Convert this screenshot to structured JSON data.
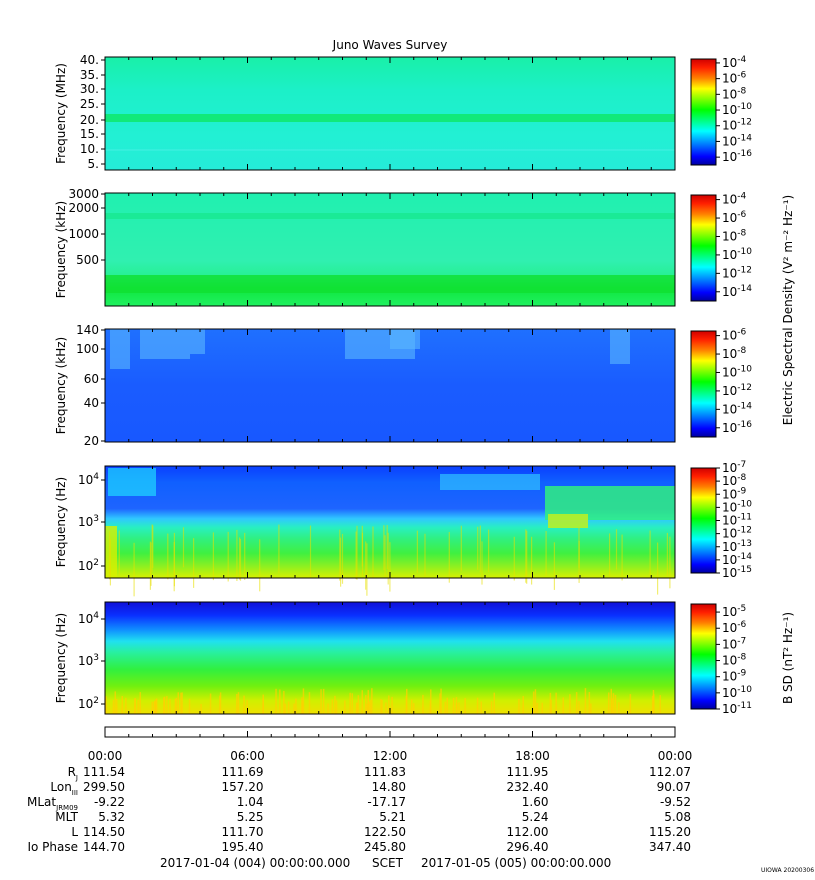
{
  "chart_data": [
    {
      "type": "heatmap",
      "title": "Juno Waves Survey",
      "ylabel": "Frequency (MHz)",
      "yticks": [
        "40.",
        "35.",
        "30.",
        "25.",
        "20.",
        "15.",
        "10.",
        "5."
      ],
      "colorbar_ticks": [
        "-4",
        "-6",
        "-8",
        "-10",
        "-12",
        "-14",
        "-16"
      ],
      "colorbar_range": [
        -17,
        -3.5
      ]
    },
    {
      "type": "heatmap",
      "ylabel": "Frequency (kHz)",
      "yticks": [
        "3000",
        "2000",
        "1000",
        "500"
      ],
      "colorbar_ticks": [
        "-4",
        "-6",
        "-8",
        "-10",
        "-12",
        "-14"
      ],
      "colorbar_range": [
        -15,
        -3.5
      ]
    },
    {
      "type": "heatmap",
      "ylabel": "Frequency (kHz)",
      "yticks": [
        "140",
        "100",
        "60",
        "40",
        "20"
      ],
      "colorbar_ticks": [
        "-6",
        "-8",
        "-10",
        "-12",
        "-14",
        "-16"
      ],
      "colorbar_range": [
        -17,
        -5.5
      ]
    },
    {
      "type": "heatmap",
      "ylabel": "Frequency (Hz)",
      "yticks": [
        {
          "base": "10",
          "exp": "4"
        },
        {
          "base": "10",
          "exp": "3"
        },
        {
          "base": "10",
          "exp": "2"
        }
      ],
      "colorbar_ticks": [
        "-7",
        "-8",
        "-9",
        "-10",
        "-11",
        "-12",
        "-13",
        "-14",
        "-15"
      ],
      "colorbar_range": [
        -15,
        -7
      ],
      "colorbar_label": "Electric Spectral Density (V² m⁻² Hz⁻¹)"
    },
    {
      "type": "heatmap",
      "ylabel": "Frequency (Hz)",
      "yticks": [
        {
          "base": "10",
          "exp": "4"
        },
        {
          "base": "10",
          "exp": "3"
        },
        {
          "base": "10",
          "exp": "2"
        }
      ],
      "colorbar_ticks": [
        "-5",
        "-6",
        "-7",
        "-8",
        "-9",
        "-10",
        "-11"
      ],
      "colorbar_range": [
        -11,
        -4.5
      ],
      "colorbar_label": "B SD (nT² Hz⁻¹)"
    }
  ],
  "colorbar_base": "10",
  "time_axis": {
    "labels": [
      "00:00",
      "06:00",
      "12:00",
      "18:00",
      "00:00"
    ],
    "rows": [
      {
        "label": "R",
        "sub": "J",
        "values": [
          "111.54",
          "111.69",
          "111.83",
          "111.95",
          "112.07"
        ]
      },
      {
        "label": "Lon",
        "sub": "III",
        "values": [
          "299.50",
          "157.20",
          "14.80",
          "232.40",
          "90.07"
        ]
      },
      {
        "label": "MLat",
        "sub": "JRM09",
        "values": [
          "-9.22",
          "1.04",
          "-17.17",
          "1.60",
          "-9.52"
        ]
      },
      {
        "label": "MLT",
        "sub": "",
        "values": [
          "5.32",
          "5.25",
          "5.21",
          "5.24",
          "5.08"
        ]
      },
      {
        "label": "L",
        "sub": "",
        "values": [
          "114.50",
          "111.70",
          "122.50",
          "112.00",
          "115.20"
        ]
      },
      {
        "label": "Io Phase",
        "sub": "",
        "values": [
          "144.70",
          "195.40",
          "245.80",
          "296.40",
          "347.40"
        ]
      }
    ]
  },
  "footer": {
    "start": "2017-01-04 (004) 00:00:00.000",
    "scet": "SCET",
    "end": "2017-01-05 (005) 00:00:00.000",
    "stamp": "UIOWA 20200306"
  }
}
